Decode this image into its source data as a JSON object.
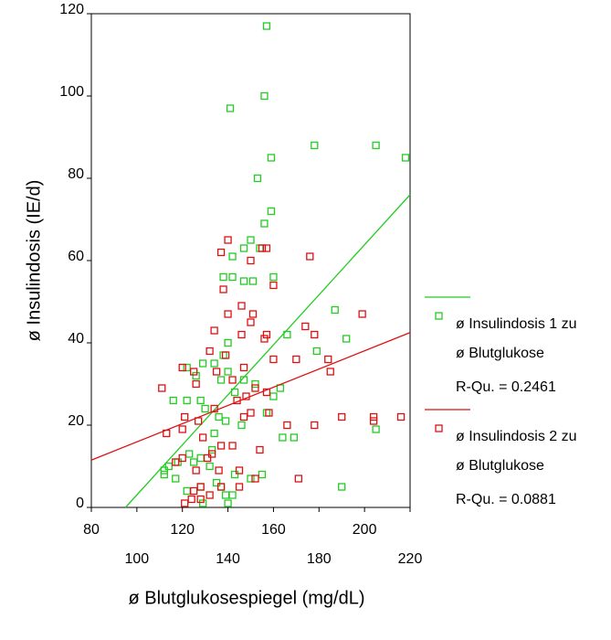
{
  "chart_data": {
    "type": "scatter",
    "x_label": "ø Blutglukosespiegel (mg/dL)",
    "y_label": "ø Insulindosis (IE/d)",
    "xlim": [
      80,
      220
    ],
    "ylim": [
      0,
      120
    ],
    "xticks": [
      80,
      100,
      120,
      140,
      160,
      180,
      200,
      220
    ],
    "yticks": [
      0,
      20,
      40,
      60,
      80,
      100,
      120
    ],
    "series": [
      {
        "name": "ø Insulindosis 1 zu",
        "name_sub": "ø Blutglukose",
        "r_squared_label": "R-Qu. = 0.2461",
        "color": "#22cc22",
        "x": [
          157,
          156,
          141,
          178,
          205,
          218,
          159,
          153,
          159,
          156,
          150,
          154,
          147,
          142,
          160,
          138,
          142,
          147,
          151,
          187,
          166,
          192,
          179,
          140,
          138,
          134,
          140,
          129,
          122,
          126,
          147,
          137,
          152,
          143,
          163,
          160,
          157,
          128,
          122,
          116,
          130,
          136,
          139,
          146,
          134,
          133,
          123,
          128,
          118,
          125,
          132,
          114,
          112,
          112,
          143,
          150,
          155,
          117,
          135,
          128,
          122,
          139,
          142,
          137,
          140,
          129,
          205,
          190,
          169,
          164
        ],
        "values": [
          117,
          100,
          97,
          88,
          88,
          85,
          85,
          80,
          72,
          69,
          65,
          63,
          63,
          61,
          56,
          56,
          56,
          55,
          55,
          48,
          42,
          41,
          38,
          40,
          37,
          35,
          33,
          35,
          34,
          32,
          31,
          31,
          30,
          28,
          29,
          27,
          23,
          26,
          26,
          26,
          24,
          22,
          21,
          20,
          18,
          14,
          13,
          12,
          11,
          11,
          10,
          10,
          9,
          8,
          8,
          7,
          8,
          7,
          6,
          5,
          4,
          3,
          3,
          5,
          1,
          1,
          19,
          5,
          17,
          17
        ],
        "fit_x": [
          95,
          220
        ],
        "fit_values": [
          0,
          76
        ]
      },
      {
        "name": "ø Insulindosis 2 zu",
        "name_sub": "ø Blutglukose",
        "r_squared_label": "R-Qu. = 0.0881",
        "color": "#dd1111",
        "x": [
          140,
          155,
          157,
          137,
          176,
          150,
          160,
          138,
          146,
          151,
          199,
          140,
          150,
          174,
          146,
          134,
          157,
          156,
          178,
          132,
          139,
          170,
          160,
          184,
          147,
          120,
          125,
          185,
          135,
          142,
          126,
          152,
          157,
          148,
          111,
          144,
          134,
          158,
          150,
          147,
          121,
          127,
          166,
          178,
          190,
          204,
          216,
          204,
          120,
          113,
          129,
          137,
          142,
          133,
          120,
          131,
          154,
          117,
          126,
          136,
          145,
          152,
          171,
          128,
          137,
          145,
          125,
          132,
          124,
          121,
          128
        ],
        "values": [
          65,
          63,
          63,
          62,
          61,
          60,
          54,
          53,
          49,
          47,
          47,
          47,
          45,
          44,
          42,
          43,
          42,
          41,
          42,
          38,
          37,
          36,
          36,
          36,
          34,
          34,
          33,
          33,
          33,
          31,
          30,
          29,
          28,
          27,
          29,
          26,
          24,
          23,
          23,
          22,
          22,
          21,
          20,
          20,
          22,
          22,
          22,
          21,
          19,
          18,
          17,
          15,
          15,
          13,
          12,
          12,
          14,
          11,
          9,
          9,
          9,
          7,
          7,
          5,
          5,
          5,
          4,
          3,
          2,
          1,
          2
        ],
        "fit_x": [
          80,
          220
        ],
        "fit_values": [
          11.5,
          42.5
        ]
      }
    ]
  }
}
